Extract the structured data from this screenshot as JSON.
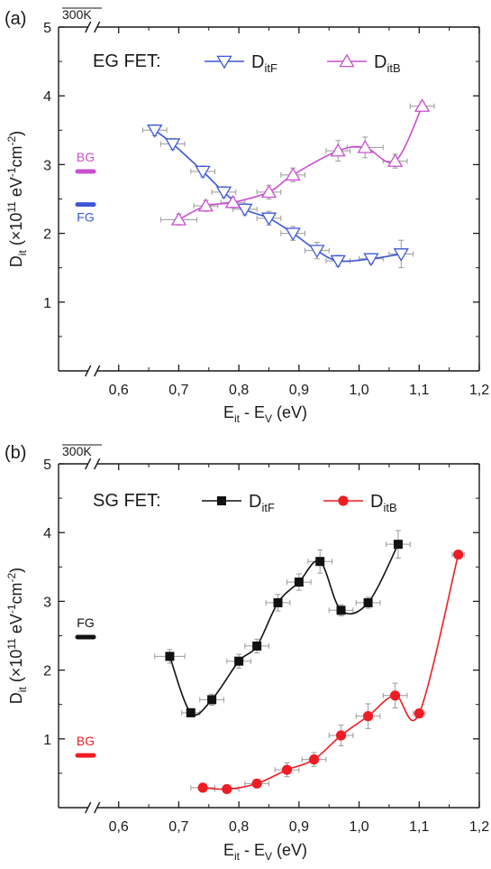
{
  "chart_data": [
    {
      "type": "line",
      "panel_label": "(a)",
      "temperature": "300K",
      "legend_prefix": "EG FET:",
      "legend_placement": "top",
      "grid": false,
      "xlabel": {
        "main": "E",
        "sub1": "it",
        "mid": " - E",
        "sub2": "V",
        "tail": " (eV)"
      },
      "ylabel": {
        "main": "D",
        "sub": "it",
        "rest": " (×10",
        "sup1": "11",
        "rest2": " eV",
        "sup2": "-1",
        "rest3": "cm",
        "sup3": "-2",
        "tail": ")"
      },
      "xlim": [
        0.5,
        1.2
      ],
      "ylim": [
        0,
        5
      ],
      "x_break": true,
      "xticks": [
        "0,6",
        "0,7",
        "0,8",
        "0,9",
        "1,0",
        "1,1",
        "1,2"
      ],
      "xtick_values": [
        0.6,
        0.7,
        0.8,
        0.9,
        1.0,
        1.1,
        1.2
      ],
      "yticks": [
        "1",
        "2",
        "3",
        "4",
        "5"
      ],
      "ytick_values": [
        1,
        2,
        3,
        4,
        5
      ],
      "series": [
        {
          "name": "D",
          "name_sub": "itF",
          "color": "#3d57d6",
          "marker": "triangle-down",
          "x": [
            0.66,
            0.69,
            0.74,
            0.775,
            0.81,
            0.85,
            0.89,
            0.93,
            0.965,
            1.02,
            1.07
          ],
          "y": [
            3.5,
            3.3,
            2.9,
            2.6,
            2.35,
            2.22,
            2.0,
            1.75,
            1.6,
            1.63,
            1.7
          ],
          "xerr": [
            0.02,
            0.02,
            0.02,
            0.02,
            0.02,
            0.02,
            0.02,
            0.02,
            0.02,
            0.02,
            0.02
          ],
          "yerr": [
            0.08,
            0.08,
            0.08,
            0.08,
            0.08,
            0.1,
            0.1,
            0.12,
            0.08,
            0.07,
            0.2
          ]
        },
        {
          "name": "D",
          "name_sub": "itB",
          "color": "#c94fd0",
          "marker": "triangle-up",
          "x": [
            0.7,
            0.745,
            0.79,
            0.85,
            0.89,
            0.965,
            1.01,
            1.06,
            1.105
          ],
          "y": [
            2.2,
            2.4,
            2.45,
            2.6,
            2.85,
            3.2,
            3.25,
            3.05,
            3.85
          ],
          "xerr": [
            0.03,
            0.02,
            0.02,
            0.02,
            0.02,
            0.02,
            0.03,
            0.02,
            0.02
          ],
          "yerr": [
            0.08,
            0.08,
            0.08,
            0.1,
            0.1,
            0.15,
            0.15,
            0.1,
            0.06
          ]
        }
      ],
      "markers": [
        {
          "label": "BG",
          "y": 2.9,
          "color": "#c94fd0"
        },
        {
          "label": "FG",
          "y": 2.42,
          "color": "#3d57d6"
        }
      ]
    },
    {
      "type": "line",
      "panel_label": "(b)",
      "temperature": "300K",
      "legend_prefix": "SG FET:",
      "legend_placement": "top",
      "grid": false,
      "xlabel": {
        "main": "E",
        "sub1": "it",
        "mid": " - E",
        "sub2": "V",
        "tail": " (eV)"
      },
      "ylabel": {
        "main": "D",
        "sub": "it",
        "rest": " (×10",
        "sup1": "11",
        "rest2": " eV",
        "sup2": "-1",
        "rest3": "cm",
        "sup3": "-2",
        "tail": ")"
      },
      "xlim": [
        0.5,
        1.2
      ],
      "ylim": [
        0,
        5
      ],
      "x_break": true,
      "xticks": [
        "0,6",
        "0,7",
        "0,8",
        "0,9",
        "1,0",
        "1,1",
        "1,2"
      ],
      "xtick_values": [
        0.6,
        0.7,
        0.8,
        0.9,
        1.0,
        1.1,
        1.2
      ],
      "yticks": [
        "1",
        "2",
        "3",
        "4",
        "5"
      ],
      "ytick_values": [
        1,
        2,
        3,
        4,
        5
      ],
      "series": [
        {
          "name": "D",
          "name_sub": "itF",
          "color": "#111111",
          "marker": "square",
          "x": [
            0.685,
            0.72,
            0.755,
            0.8,
            0.83,
            0.865,
            0.9,
            0.935,
            0.97,
            1.015,
            1.065
          ],
          "y": [
            2.2,
            1.38,
            1.57,
            2.13,
            2.35,
            2.98,
            3.28,
            3.58,
            2.87,
            2.98,
            3.83
          ],
          "xerr": [
            0.025,
            0.015,
            0.02,
            0.02,
            0.02,
            0.02,
            0.02,
            0.02,
            0.02,
            0.02,
            0.02
          ],
          "yerr": [
            0.1,
            0.06,
            0.08,
            0.1,
            0.1,
            0.12,
            0.12,
            0.17,
            0.08,
            0.08,
            0.2
          ]
        },
        {
          "name": "D",
          "name_sub": "itB",
          "color": "#ee1c25",
          "marker": "circle",
          "x": [
            0.74,
            0.78,
            0.83,
            0.88,
            0.925,
            0.97,
            1.015,
            1.06,
            1.1,
            1.165
          ],
          "y": [
            0.29,
            0.27,
            0.35,
            0.55,
            0.7,
            1.05,
            1.33,
            1.63,
            1.37,
            3.68
          ],
          "xerr": [
            0.02,
            0.02,
            0.02,
            0.02,
            0.02,
            0.02,
            0.02,
            0.02,
            0.01,
            0.01
          ],
          "yerr": [
            0.06,
            0.05,
            0.06,
            0.1,
            0.1,
            0.15,
            0.18,
            0.18,
            0.06,
            0.05
          ]
        }
      ],
      "markers": [
        {
          "label": "FG",
          "y": 2.48,
          "color": "#111111"
        },
        {
          "label": "BG",
          "y": 0.76,
          "color": "#ee1c25"
        }
      ]
    }
  ]
}
